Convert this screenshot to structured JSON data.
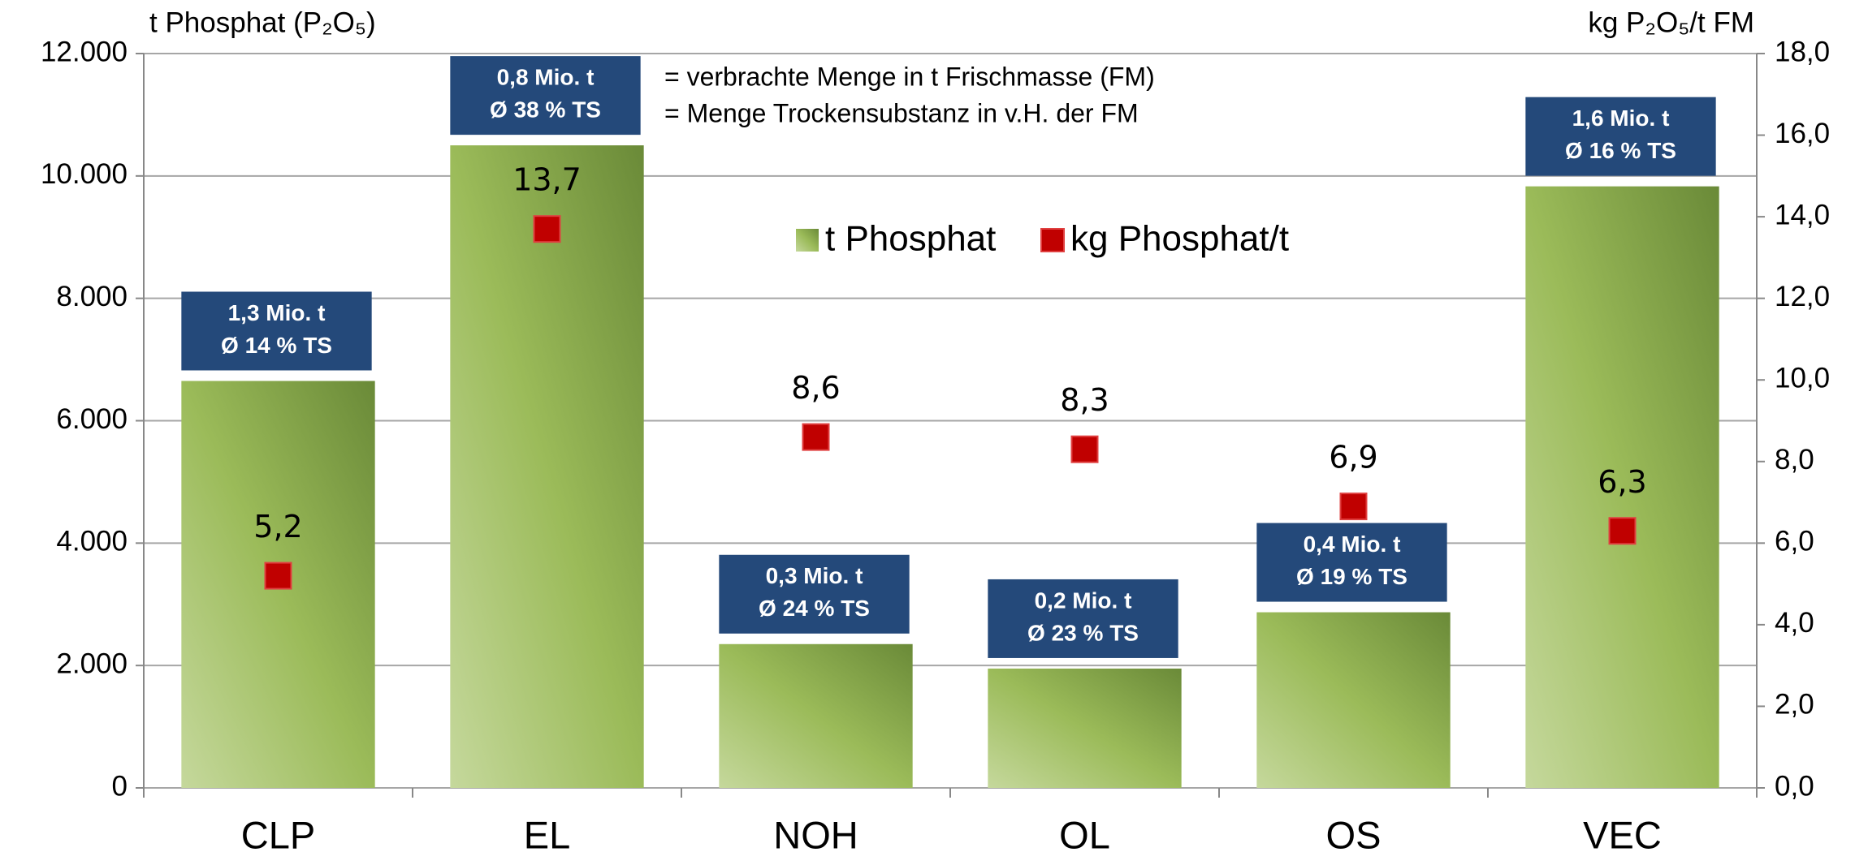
{
  "chart_data": {
    "type": "bar",
    "y_label": "t Phosphat (P₂O₅)",
    "y2_label": "kg P₂O₅/t FM",
    "categories": [
      "CLP",
      "EL",
      "NOH",
      "OL",
      "OS",
      "VEC"
    ],
    "series": [
      {
        "name": "t Phosphat",
        "color": "#9bbb59",
        "values": [
          6650,
          10500,
          2350,
          1950,
          2870,
          9830
        ]
      },
      {
        "name": "kg Phosphat/t",
        "color": "#c00000",
        "axis": "y2",
        "type": "scatter",
        "values": [
          5.2,
          13.7,
          8.6,
          8.3,
          6.9,
          6.3
        ],
        "value_labels": [
          "5,2",
          "13,7",
          "8,6",
          "8,3",
          "6,9",
          "6,3"
        ]
      }
    ],
    "box_labels": [
      [
        "1,3 Mio. t",
        "Ø 14 % TS"
      ],
      [
        "0,8 Mio. t",
        "Ø 38 % TS"
      ],
      [
        "0,3 Mio. t",
        "Ø 24 % TS"
      ],
      [
        "0,2 Mio. t",
        "Ø 23 % TS"
      ],
      [
        "0,4 Mio. t",
        "Ø 19 % TS"
      ],
      [
        "1,6 Mio. t",
        "Ø 16 % TS"
      ]
    ],
    "box_legend": [
      "= verbrachte Menge in t Frischmasse (FM)",
      "= Menge Trockensubstanz in v.H. der FM"
    ],
    "ylim": [
      0,
      12000
    ],
    "yticks": [
      0,
      {
        "value": 2000,
        "label": "2.000"
      },
      {
        "value": 4000,
        "label": "4.000"
      },
      {
        "value": 6000,
        "label": "6.000"
      },
      {
        "value": 8000,
        "label": "8.000"
      },
      {
        "value": 10000,
        "label": "10.000"
      },
      {
        "value": 12000,
        "label": "12.000"
      }
    ],
    "y2lim": [
      0,
      18
    ],
    "y2ticks": [
      {
        "value": 0,
        "label": "0,0"
      },
      {
        "value": 2,
        "label": "2,0"
      },
      {
        "value": 4,
        "label": "4,0"
      },
      {
        "value": 6,
        "label": "6,0"
      },
      {
        "value": 8,
        "label": "8,0"
      },
      {
        "value": 10,
        "label": "10,0"
      },
      {
        "value": 12,
        "label": "12,0"
      },
      {
        "value": 14,
        "label": "14,0"
      },
      {
        "value": 16,
        "label": "16,0"
      },
      {
        "value": 18,
        "label": "18,0"
      }
    ],
    "grid": true
  }
}
